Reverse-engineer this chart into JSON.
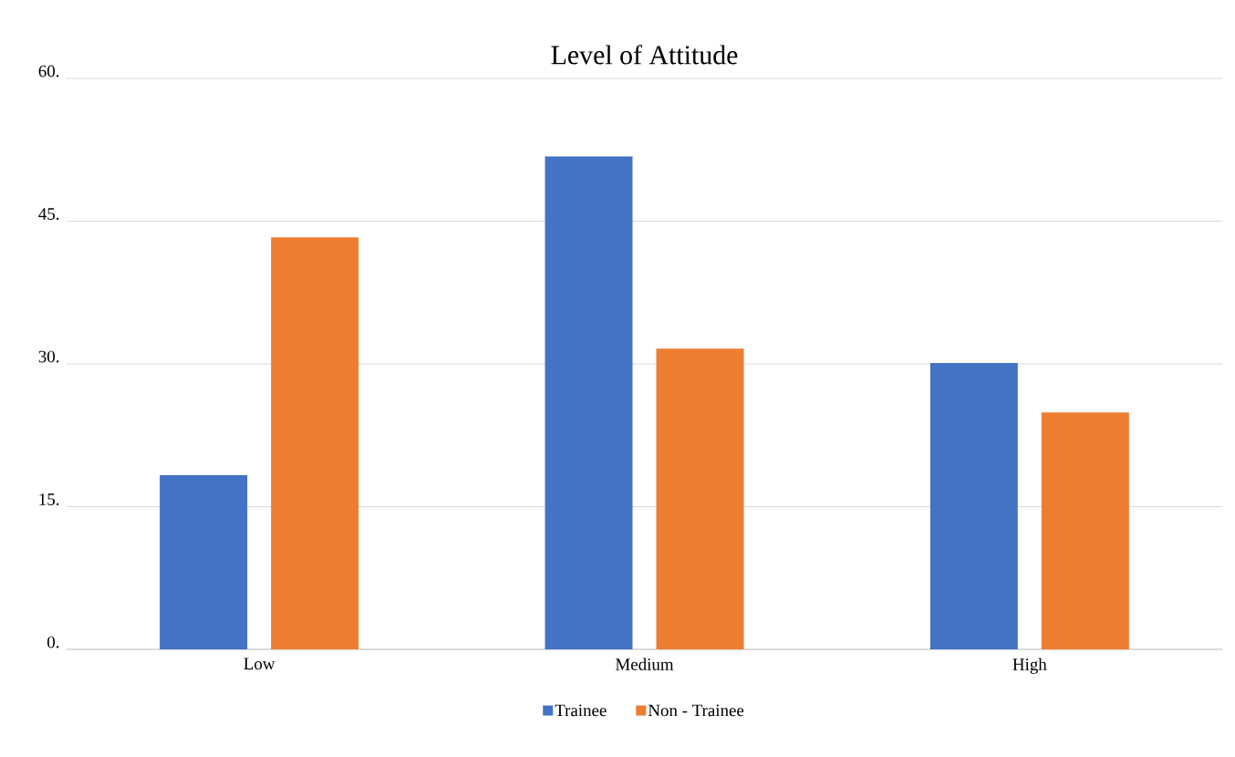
{
  "chart_data": {
    "type": "bar",
    "title": "Level of Attitude",
    "categories": [
      "Low",
      "Medium",
      "High"
    ],
    "series": [
      {
        "name": "Trainee",
        "color": "#4472c4",
        "values": [
          18.3,
          51.8,
          30.1
        ]
      },
      {
        "name": "Non - Trainee",
        "color": "#ed7d31",
        "values": [
          43.3,
          31.6,
          24.9
        ]
      }
    ],
    "ylim": [
      0,
      60
    ],
    "yticks": [
      {
        "value": 0,
        "label": "0."
      },
      {
        "value": 15,
        "label": "15."
      },
      {
        "value": 30,
        "label": "30."
      },
      {
        "value": 45,
        "label": "45."
      },
      {
        "value": 60,
        "label": "60."
      }
    ],
    "grid": "y",
    "legend": "bottom"
  }
}
